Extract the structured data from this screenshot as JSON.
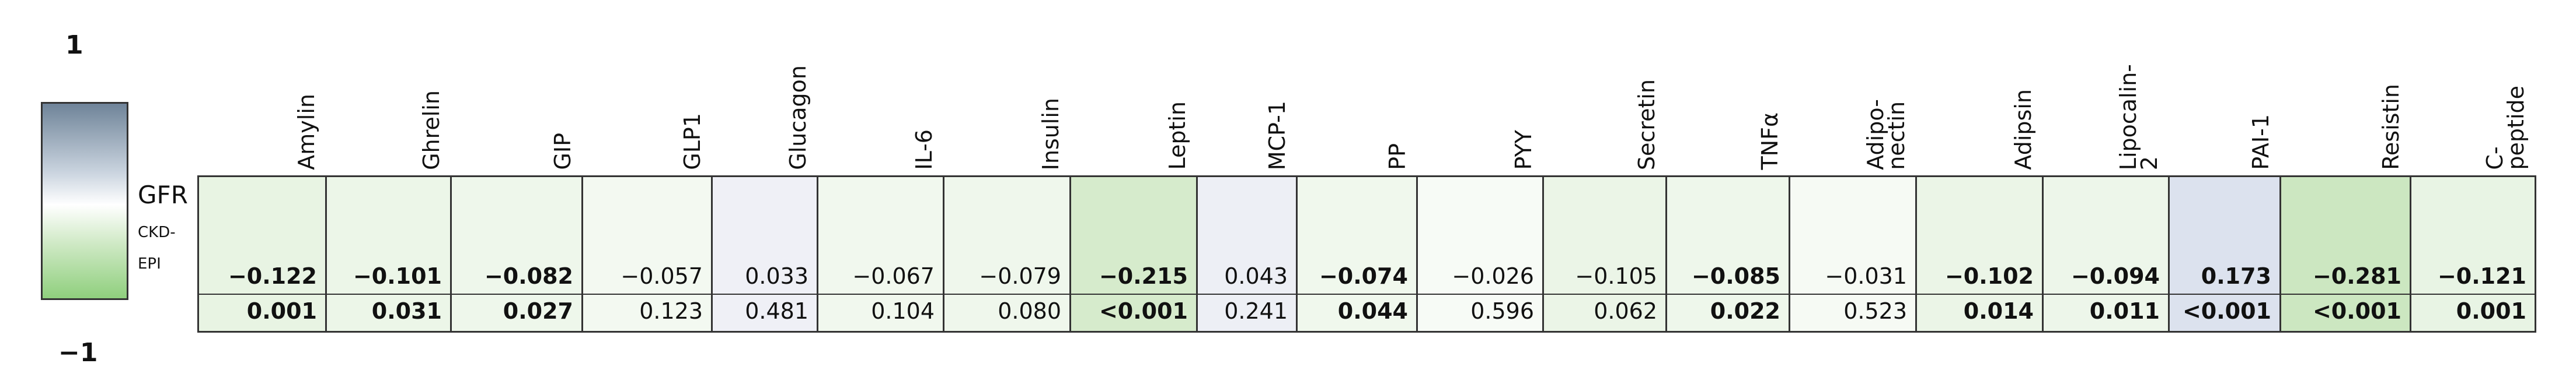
{
  "legend": {
    "max": "1",
    "min": "−1"
  },
  "row": {
    "label": "GFR",
    "sublabel": "CKD-\nEPI"
  },
  "columns": [
    {
      "header": "Amylin",
      "r": "−0.122",
      "p": "0.001",
      "bold": true,
      "color": "#e8f4e3"
    },
    {
      "header": "Ghrelin",
      "r": "−0.101",
      "p": "0.031",
      "bold": true,
      "color": "#ecf6e8"
    },
    {
      "header": "GIP",
      "r": "−0.082",
      "p": "0.027",
      "bold": true,
      "color": "#eef7eb"
    },
    {
      "header": "GLP1",
      "r": "−0.057",
      "p": "0.123",
      "bold": false,
      "color": "#f3f9f1"
    },
    {
      "header": "Glucagon",
      "r": "0.033",
      "p": "0.481",
      "bold": false,
      "color": "#eff0f6"
    },
    {
      "header": "IL-6",
      "r": "−0.067",
      "p": "0.104",
      "bold": false,
      "color": "#f1f8ee"
    },
    {
      "header": "Insulin",
      "r": "−0.079",
      "p": "0.080",
      "bold": false,
      "color": "#eff7ec"
    },
    {
      "header": "Leptin",
      "r": "−0.215",
      "p": "<0.001",
      "bold": true,
      "color": "#d6ebcc"
    },
    {
      "header": "MCP-1",
      "r": "0.043",
      "p": "0.241",
      "bold": false,
      "color": "#edeff5"
    },
    {
      "header": "PP",
      "r": "−0.074",
      "p": "0.044",
      "bold": true,
      "color": "#f0f8ed"
    },
    {
      "header": "PYY",
      "r": "−0.026",
      "p": "0.596",
      "bold": false,
      "color": "#f7fbf6"
    },
    {
      "header": "Secretin",
      "r": "−0.105",
      "p": "0.062",
      "bold": false,
      "color": "#ebf5e7"
    },
    {
      "header": "TNFα",
      "r": "−0.085",
      "p": "0.022",
      "bold": true,
      "color": "#eef7eb"
    },
    {
      "header": "Adipo-\nnectin",
      "r": "−0.031",
      "p": "0.523",
      "bold": false,
      "color": "#f6faf4"
    },
    {
      "header": "Adipsin",
      "r": "−0.102",
      "p": "0.014",
      "bold": true,
      "color": "#ebf5e7"
    },
    {
      "header": "Lipocalin-\n2",
      "r": "−0.094",
      "p": "0.011",
      "bold": true,
      "color": "#edf6ea"
    },
    {
      "header": "PAI-1",
      "r": "0.173",
      "p": "<0.001",
      "bold": true,
      "color": "#dce2ee"
    },
    {
      "header": "Resistin",
      "r": "−0.281",
      "p": "<0.001",
      "bold": true,
      "color": "#cce7c1"
    },
    {
      "header": "C-\npeptide",
      "r": "−0.121",
      "p": "0.001",
      "bold": true,
      "color": "#e8f4e4"
    }
  ]
}
